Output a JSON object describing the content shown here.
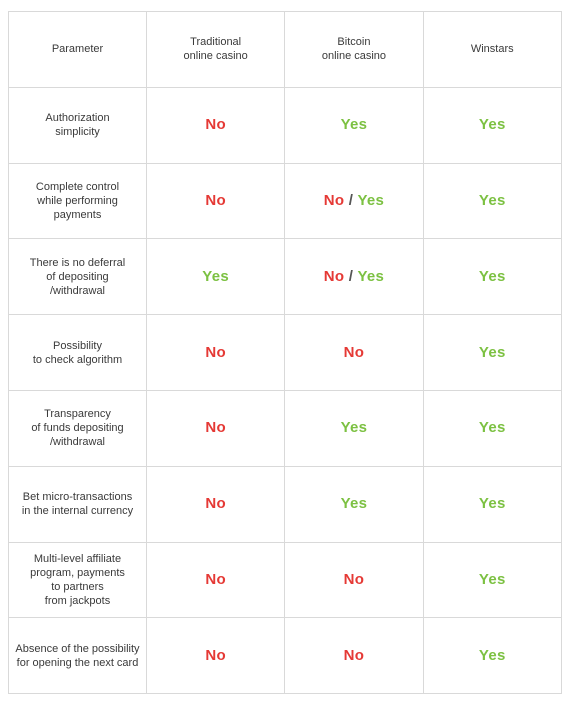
{
  "colors": {
    "no": "#e53935",
    "yes": "#7cc142",
    "border": "#d9d9d9"
  },
  "header": {
    "parameter": "Parameter",
    "columns": [
      [
        "Traditional",
        "online casino"
      ],
      [
        "Bitcoin",
        "online casino"
      ],
      [
        "Winstars"
      ]
    ]
  },
  "rows": [
    {
      "param": [
        "Authorization",
        "simplicity"
      ],
      "values": [
        [
          "No"
        ],
        [
          "Yes"
        ],
        [
          "Yes"
        ]
      ]
    },
    {
      "param": [
        "Complete control",
        "while performing",
        "payments"
      ],
      "values": [
        [
          "No"
        ],
        [
          "No",
          "Yes"
        ],
        [
          "Yes"
        ]
      ]
    },
    {
      "param": [
        "There is no deferral",
        "of depositing",
        "/withdrawal"
      ],
      "values": [
        [
          "Yes"
        ],
        [
          "No",
          "Yes"
        ],
        [
          "Yes"
        ]
      ]
    },
    {
      "param": [
        "Possibility",
        "to check algorithm"
      ],
      "values": [
        [
          "No"
        ],
        [
          "No"
        ],
        [
          "Yes"
        ]
      ]
    },
    {
      "param": [
        "Transparency",
        "of funds depositing",
        "/withdrawal"
      ],
      "values": [
        [
          "No"
        ],
        [
          "Yes"
        ],
        [
          "Yes"
        ]
      ]
    },
    {
      "param": [
        "Bet micro-transactions",
        "in the internal currency"
      ],
      "values": [
        [
          "No"
        ],
        [
          "Yes"
        ],
        [
          "Yes"
        ]
      ]
    },
    {
      "param": [
        "Multi-level affiliate",
        "program, payments",
        "to partners",
        "from jackpots"
      ],
      "values": [
        [
          "No"
        ],
        [
          "No"
        ],
        [
          "Yes"
        ]
      ]
    },
    {
      "param": [
        "Absence of the possibility",
        "for opening the next card"
      ],
      "values": [
        [
          "No"
        ],
        [
          "No"
        ],
        [
          "Yes"
        ]
      ]
    }
  ]
}
